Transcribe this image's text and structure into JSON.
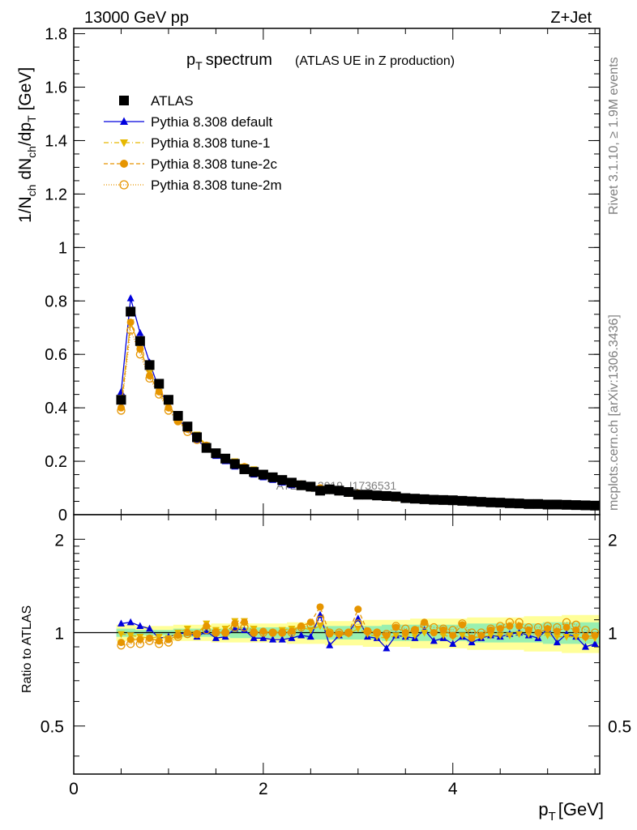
{
  "header": {
    "left": "13000 GeV pp",
    "right": "Z+Jet"
  },
  "side_labels": {
    "rivet": "Rivet 3.1.10, ≥ 1.9M events",
    "mcplots": "mcplots.cern.ch [arXiv:1306.3436]"
  },
  "watermark": "ATLAS_2019_I1736531",
  "colors": {
    "atlas": "#000000",
    "default": "#0000dd",
    "tune1": "#e6b800",
    "tune2c": "#e69500",
    "tune2m": "#e69500",
    "band_outer": "#ffff99",
    "band_inner": "#99f0b0"
  },
  "chart_data": [
    {
      "type": "scatter",
      "title": "p_T spectrum",
      "subtitle": "(ATLAS UE in Z production)",
      "ylabel": "1/N_ch dN_ch/dp_T [GeV]",
      "xlabel": "",
      "xlim": [
        0,
        5.55
      ],
      "ylim": [
        0,
        1.82
      ],
      "yticks": [
        "0",
        "0.2",
        "0.4",
        "0.6",
        "0.8",
        "1",
        "1.2",
        "1.4",
        "1.6",
        "1.8"
      ],
      "ytick_values": [
        0,
        0.2,
        0.4,
        0.6,
        0.8,
        1.0,
        1.2,
        1.4,
        1.6,
        1.8
      ],
      "legend": {
        "position": "top-left",
        "entries": [
          {
            "key": "atlas",
            "label": "ATLAS",
            "marker": "square"
          },
          {
            "key": "default",
            "label": "Pythia 8.308 default",
            "marker": "triangle-up"
          },
          {
            "key": "tune1",
            "label": "Pythia 8.308 tune-1",
            "marker": "triangle-down"
          },
          {
            "key": "tune2c",
            "label": "Pythia 8.308 tune-2c",
            "marker": "circle"
          },
          {
            "key": "tune2m",
            "label": "Pythia 8.308 tune-2m",
            "marker": "circle-open"
          }
        ]
      },
      "x": [
        0.5,
        0.6,
        0.7,
        0.8,
        0.9,
        1.0,
        1.1,
        1.2,
        1.3,
        1.4,
        1.5,
        1.6,
        1.7,
        1.8,
        1.9,
        2.0,
        2.1,
        2.2,
        2.3,
        2.4,
        2.5,
        2.6,
        2.7,
        2.8,
        2.9,
        3.0,
        3.1,
        3.2,
        3.3,
        3.4,
        3.5,
        3.6,
        3.7,
        3.8,
        3.9,
        4.0,
        4.1,
        4.2,
        4.3,
        4.4,
        4.5,
        4.6,
        4.7,
        4.8,
        4.9,
        5.0,
        5.1,
        5.2,
        5.3,
        5.4,
        5.5
      ],
      "series": [
        {
          "key": "atlas",
          "name": "ATLAS",
          "values": [
            0.43,
            0.76,
            0.65,
            0.56,
            0.49,
            0.43,
            0.37,
            0.33,
            0.29,
            0.25,
            0.23,
            0.21,
            0.19,
            0.17,
            0.16,
            0.15,
            0.14,
            0.13,
            0.12,
            0.11,
            0.105,
            0.09,
            0.095,
            0.09,
            0.085,
            0.075,
            0.075,
            0.072,
            0.07,
            0.068,
            0.062,
            0.06,
            0.058,
            0.056,
            0.055,
            0.054,
            0.052,
            0.05,
            0.048,
            0.046,
            0.045,
            0.043,
            0.042,
            0.04,
            0.04,
            0.038,
            0.038,
            0.037,
            0.036,
            0.035,
            0.034
          ]
        },
        {
          "key": "default",
          "name": "Pythia 8.308 default",
          "values": [
            0.46,
            0.81,
            0.68,
            0.57,
            0.47,
            0.41,
            0.36,
            0.32,
            0.28,
            0.25,
            0.22,
            0.2,
            0.18,
            0.17,
            0.15,
            0.14,
            0.13,
            0.12,
            0.11,
            0.105,
            0.1,
            0.097,
            0.09,
            0.085,
            0.08,
            0.075,
            0.072,
            0.07,
            0.065,
            0.063,
            0.058,
            0.056,
            0.055,
            0.052,
            0.05,
            0.049,
            0.047,
            0.046,
            0.044,
            0.043,
            0.042,
            0.041,
            0.04,
            0.039,
            0.038,
            0.037,
            0.036,
            0.036,
            0.035,
            0.034,
            0.033
          ]
        },
        {
          "key": "tune1",
          "name": "Pythia 8.308 tune-1",
          "values": [
            0.42,
            0.72,
            0.62,
            0.53,
            0.46,
            0.41,
            0.36,
            0.32,
            0.3,
            0.26,
            0.23,
            0.21,
            0.2,
            0.18,
            0.17,
            0.15,
            0.14,
            0.13,
            0.12,
            0.11,
            0.1,
            0.095,
            0.09,
            0.086,
            0.08,
            0.078,
            0.074,
            0.07,
            0.067,
            0.064,
            0.06,
            0.058,
            0.057,
            0.055,
            0.053,
            0.052,
            0.05,
            0.049,
            0.047,
            0.046,
            0.045,
            0.044,
            0.043,
            0.042,
            0.041,
            0.04,
            0.039,
            0.038,
            0.037,
            0.036,
            0.035
          ]
        },
        {
          "key": "tune2c",
          "name": "Pythia 8.308 tune-2c",
          "values": [
            0.4,
            0.72,
            0.62,
            0.52,
            0.46,
            0.4,
            0.35,
            0.32,
            0.29,
            0.26,
            0.23,
            0.21,
            0.19,
            0.18,
            0.16,
            0.15,
            0.14,
            0.13,
            0.12,
            0.115,
            0.108,
            0.1,
            0.094,
            0.089,
            0.085,
            0.08,
            0.076,
            0.072,
            0.068,
            0.065,
            0.062,
            0.06,
            0.058,
            0.056,
            0.054,
            0.053,
            0.051,
            0.05,
            0.048,
            0.047,
            0.046,
            0.045,
            0.044,
            0.043,
            0.042,
            0.041,
            0.04,
            0.039,
            0.038,
            0.037,
            0.036
          ]
        },
        {
          "key": "tune2m",
          "name": "Pythia 8.308 tune-2m",
          "values": [
            0.39,
            0.69,
            0.6,
            0.51,
            0.45,
            0.39,
            0.35,
            0.31,
            0.28,
            0.25,
            0.23,
            0.21,
            0.19,
            0.17,
            0.16,
            0.15,
            0.14,
            0.13,
            0.12,
            0.112,
            0.105,
            0.098,
            0.093,
            0.088,
            0.083,
            0.079,
            0.075,
            0.071,
            0.068,
            0.065,
            0.062,
            0.059,
            0.057,
            0.055,
            0.053,
            0.052,
            0.05,
            0.049,
            0.047,
            0.046,
            0.045,
            0.044,
            0.043,
            0.042,
            0.041,
            0.04,
            0.039,
            0.038,
            0.037,
            0.036,
            0.035
          ]
        }
      ]
    },
    {
      "type": "scatter",
      "title": "",
      "ylabel": "Ratio to ATLAS",
      "xlabel": "p_T [GeV]",
      "xlim": [
        0,
        5.55
      ],
      "ylim": [
        0.35,
        2.4
      ],
      "log_y": true,
      "yticks": [
        "0.5",
        "1",
        "2"
      ],
      "ytick_values": [
        0.5,
        1,
        2
      ],
      "xticks": [
        "0",
        "2",
        "4"
      ],
      "xtick_values": [
        0,
        2,
        4
      ],
      "reference_line": 1,
      "band_outer": [
        0.06,
        0.06,
        0.05,
        0.05,
        0.05,
        0.05,
        0.06,
        0.06,
        0.06,
        0.06,
        0.07,
        0.07,
        0.07,
        0.07,
        0.07,
        0.07,
        0.07,
        0.07,
        0.08,
        0.08,
        0.08,
        0.08,
        0.09,
        0.09,
        0.09,
        0.09,
        0.1,
        0.1,
        0.1,
        0.1,
        0.1,
        0.11,
        0.11,
        0.11,
        0.11,
        0.11,
        0.11,
        0.12,
        0.12,
        0.12,
        0.12,
        0.12,
        0.12,
        0.13,
        0.13,
        0.13,
        0.13,
        0.14,
        0.14,
        0.14,
        0.14
      ],
      "band_inner": [
        0.03,
        0.03,
        0.02,
        0.02,
        0.02,
        0.02,
        0.03,
        0.03,
        0.03,
        0.03,
        0.03,
        0.03,
        0.04,
        0.04,
        0.04,
        0.04,
        0.04,
        0.04,
        0.04,
        0.04,
        0.05,
        0.05,
        0.05,
        0.05,
        0.05,
        0.05,
        0.05,
        0.05,
        0.06,
        0.06,
        0.06,
        0.06,
        0.06,
        0.06,
        0.06,
        0.06,
        0.06,
        0.07,
        0.07,
        0.07,
        0.07,
        0.07,
        0.07,
        0.07,
        0.07,
        0.08,
        0.08,
        0.08,
        0.08,
        0.08,
        0.08
      ],
      "series": [
        {
          "key": "default",
          "name": "Pythia 8.308 default",
          "values": [
            1.07,
            1.08,
            1.05,
            1.03,
            0.96,
            0.97,
            0.99,
            1.0,
            0.97,
            1.01,
            0.96,
            0.97,
            1.03,
            1.02,
            0.96,
            0.96,
            0.95,
            0.95,
            0.96,
            0.98,
            0.97,
            1.14,
            0.91,
            0.98,
            1.0,
            1.11,
            0.97,
            0.96,
            0.89,
            0.98,
            0.97,
            0.96,
            1.02,
            0.94,
            0.96,
            0.92,
            0.97,
            0.93,
            0.96,
            0.98,
            0.97,
            0.99,
            1.0,
            0.98,
            0.96,
            1.03,
            0.93,
            0.99,
            0.97,
            0.9,
            0.92
          ]
        },
        {
          "key": "tune1",
          "name": "Pythia 8.308 tune-1",
          "values": [
            0.99,
            0.98,
            0.97,
            0.96,
            0.97,
            0.96,
            1.0,
            1.03,
            0.99,
            1.07,
            1.02,
            1.03,
            1.09,
            1.09,
            1.03,
            1.0,
            1.0,
            1.02,
            1.03,
            1.04,
            1.02,
            1.05,
            1.0,
            0.98,
            0.99,
            1.03,
            0.99,
            0.97,
            0.96,
            0.98,
            0.97,
            0.98,
            1.0,
            1.0,
            0.98,
            0.97,
            0.98,
            0.96,
            0.97,
            0.98,
            0.98,
            0.98,
            0.99,
            0.99,
            0.98,
            0.98,
            0.97,
            0.97,
            0.97,
            0.96,
            0.96
          ]
        },
        {
          "key": "tune2c",
          "name": "Pythia 8.308 tune-2c",
          "values": [
            0.93,
            0.95,
            0.95,
            0.96,
            0.94,
            0.95,
            0.98,
            1.0,
            0.99,
            1.05,
            1.0,
            1.0,
            1.07,
            1.08,
            1.0,
            1.01,
            1.0,
            1.0,
            1.01,
            1.05,
            1.08,
            1.21,
            0.99,
            0.99,
            1.0,
            1.19,
            1.01,
            1.0,
            0.98,
            1.04,
            1.0,
            1.02,
            1.08,
            1.0,
            1.02,
            0.98,
            1.06,
            0.96,
            0.98,
            1.02,
            1.03,
            1.05,
            1.05,
            1.02,
            1.0,
            1.03,
            1.01,
            1.04,
            1.02,
            0.97,
            0.98
          ]
        },
        {
          "key": "tune2m",
          "name": "Pythia 8.308 tune-2m",
          "values": [
            0.91,
            0.92,
            0.92,
            0.94,
            0.92,
            0.93,
            0.97,
            0.99,
            0.99,
            1.02,
            1.0,
            1.0,
            1.04,
            1.04,
            1.0,
            1.0,
            1.0,
            1.0,
            1.0,
            1.04,
            1.06,
            1.1,
            1.0,
            1.0,
            1.0,
            1.07,
            1.01,
            1.0,
            0.99,
            1.05,
            1.03,
            1.02,
            1.06,
            1.04,
            1.03,
            1.02,
            1.07,
            1.0,
            1.0,
            1.03,
            1.05,
            1.08,
            1.08,
            1.04,
            1.04,
            1.05,
            1.04,
            1.08,
            1.06,
            1.02,
            1.0
          ]
        }
      ]
    }
  ]
}
